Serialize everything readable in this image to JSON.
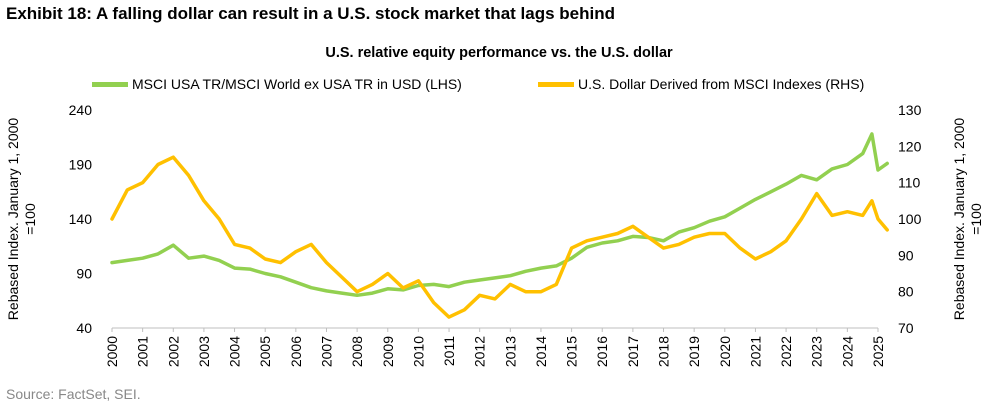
{
  "exhibit_title": "Exhibit 18: A falling dollar can result in a U.S. stock market that lags behind",
  "source": "Source: FactSet, SEI.",
  "chart_data": {
    "type": "line",
    "title": "U.S. relative equity performance vs. the U.S. dollar",
    "ylabel_left": "Rebased Index. January 1, 2000 =100",
    "ylabel_right": "Rebased Index. January 1, 2000 =100",
    "x_ticks": [
      "2000",
      "2001",
      "2002",
      "2003",
      "2004",
      "2005",
      "2006",
      "2007",
      "2008",
      "2009",
      "2010",
      "2011",
      "2012",
      "2013",
      "2014",
      "2015",
      "2016",
      "2017",
      "2018",
      "2019",
      "2020",
      "2021",
      "2022",
      "2023",
      "2024",
      "2025"
    ],
    "ylim_left": [
      40,
      240
    ],
    "yticks_left": [
      40,
      90,
      140,
      190,
      240
    ],
    "ylim_right": [
      70,
      130
    ],
    "yticks_right": [
      70,
      80,
      90,
      100,
      110,
      120,
      130
    ],
    "grid": false,
    "legend_position": "top",
    "series": [
      {
        "name": "MSCI USA TR/MSCI World ex USA TR in USD (LHS)",
        "axis": "left",
        "color": "#92D050",
        "x": [
          2000.0,
          2000.5,
          2001.0,
          2001.5,
          2002.0,
          2002.5,
          2003.0,
          2003.5,
          2004.0,
          2004.5,
          2005.0,
          2005.5,
          2006.0,
          2006.5,
          2007.0,
          2007.5,
          2008.0,
          2008.5,
          2009.0,
          2009.5,
          2010.0,
          2010.5,
          2011.0,
          2011.5,
          2012.0,
          2012.5,
          2013.0,
          2013.5,
          2014.0,
          2014.5,
          2015.0,
          2015.5,
          2016.0,
          2016.5,
          2017.0,
          2017.5,
          2018.0,
          2018.5,
          2019.0,
          2019.5,
          2020.0,
          2020.5,
          2021.0,
          2021.5,
          2022.0,
          2022.5,
          2023.0,
          2023.5,
          2024.0,
          2024.5,
          2024.8,
          2025.0,
          2025.3
        ],
        "values": [
          100,
          102,
          104,
          108,
          116,
          104,
          106,
          102,
          95,
          94,
          90,
          87,
          82,
          77,
          74,
          72,
          70,
          72,
          76,
          75,
          79,
          80,
          78,
          82,
          84,
          86,
          88,
          92,
          95,
          97,
          104,
          114,
          118,
          120,
          124,
          123,
          120,
          128,
          132,
          138,
          142,
          150,
          158,
          165,
          172,
          180,
          176,
          186,
          190,
          200,
          218,
          185,
          191
        ]
      },
      {
        "name": "U.S. Dollar Derived from MSCI Indexes (RHS)",
        "axis": "right",
        "color": "#FFC000",
        "x": [
          2000.0,
          2000.5,
          2001.0,
          2001.5,
          2002.0,
          2002.5,
          2003.0,
          2003.5,
          2004.0,
          2004.5,
          2005.0,
          2005.5,
          2006.0,
          2006.5,
          2007.0,
          2007.5,
          2008.0,
          2008.5,
          2009.0,
          2009.5,
          2010.0,
          2010.5,
          2011.0,
          2011.5,
          2012.0,
          2012.5,
          2013.0,
          2013.5,
          2014.0,
          2014.5,
          2015.0,
          2015.5,
          2016.0,
          2016.5,
          2017.0,
          2017.5,
          2018.0,
          2018.5,
          2019.0,
          2019.5,
          2020.0,
          2020.5,
          2021.0,
          2021.5,
          2022.0,
          2022.5,
          2023.0,
          2023.5,
          2024.0,
          2024.5,
          2024.8,
          2025.0,
          2025.3
        ],
        "values": [
          100,
          108,
          110,
          115,
          117,
          112,
          105,
          100,
          93,
          92,
          89,
          88,
          91,
          93,
          88,
          84,
          80,
          82,
          85,
          81,
          83,
          77,
          73,
          75,
          79,
          78,
          82,
          80,
          80,
          82,
          92,
          94,
          95,
          96,
          98,
          95,
          92,
          93,
          95,
          96,
          96,
          92,
          89,
          91,
          94,
          100,
          107,
          101,
          102,
          101,
          105,
          100,
          97
        ]
      }
    ]
  }
}
